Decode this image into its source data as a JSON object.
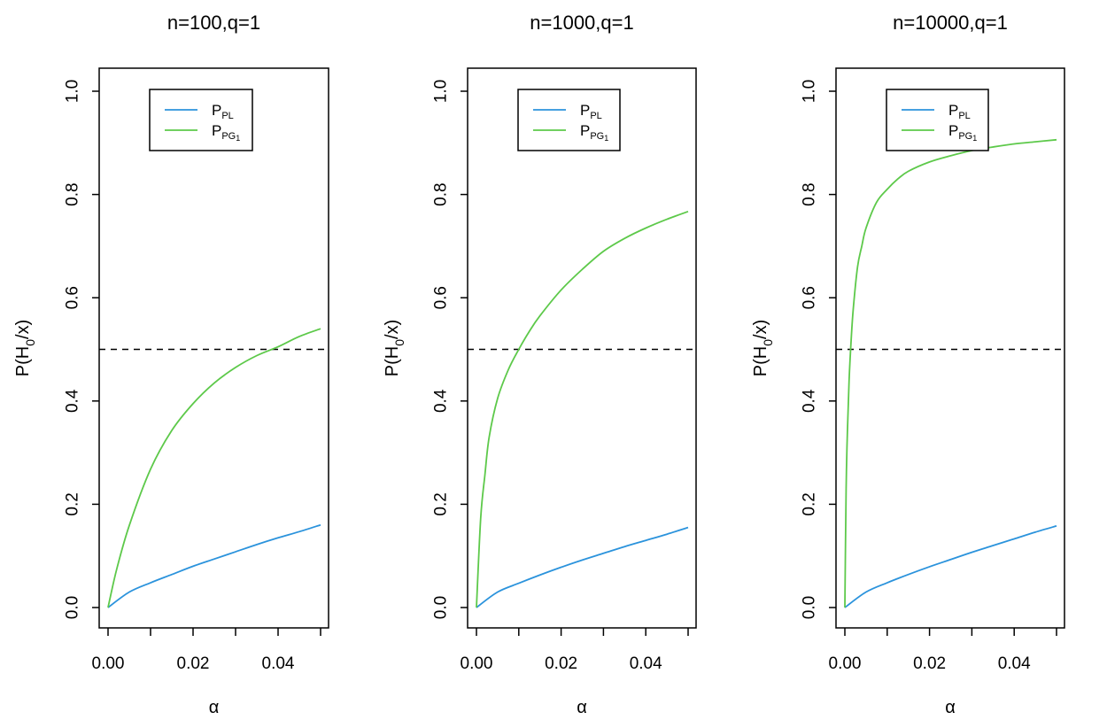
{
  "chart_data": [
    {
      "type": "line",
      "title": "n=100,q=1",
      "xlabel": "α",
      "ylabel": {
        "base": "P(H",
        "sub": "0",
        "tail": "/x)"
      },
      "xlim": [
        0,
        0.05
      ],
      "ylim": [
        0,
        1
      ],
      "xticks": [
        0,
        0.01,
        0.02,
        0.03,
        0.04,
        0.05
      ],
      "xtick_labels": [
        "0.00",
        "",
        "0.02",
        "",
        "0.04",
        ""
      ],
      "yticks": [
        0,
        0.2,
        0.4,
        0.6,
        0.8,
        1.0
      ],
      "ytick_labels": [
        "0.0",
        "0.2",
        "0.4",
        "0.6",
        "0.8",
        "1.0"
      ],
      "reference_line": {
        "y": 0.5,
        "style": "dashed"
      },
      "legend": [
        {
          "base": "P",
          "sub": "PL",
          "subsub": "",
          "color": "#2b93dc"
        },
        {
          "base": "P",
          "sub": "PG",
          "subsub": "1",
          "color": "#5dc94a"
        }
      ],
      "series": [
        {
          "name": "P_PL",
          "color": "#2b93dc",
          "x": [
            0,
            0.005,
            0.01,
            0.015,
            0.02,
            0.025,
            0.03,
            0.035,
            0.04,
            0.045,
            0.05
          ],
          "y": [
            0,
            0.03,
            0.048,
            0.064,
            0.08,
            0.094,
            0.108,
            0.122,
            0.135,
            0.147,
            0.16
          ]
        },
        {
          "name": "P_PG1",
          "color": "#5dc94a",
          "x": [
            0,
            0.002,
            0.005,
            0.01,
            0.015,
            0.02,
            0.025,
            0.03,
            0.035,
            0.04,
            0.045,
            0.05
          ],
          "y": [
            0,
            0.073,
            0.159,
            0.268,
            0.343,
            0.395,
            0.435,
            0.465,
            0.488,
            0.505,
            0.525,
            0.54
          ]
        }
      ]
    },
    {
      "type": "line",
      "title": "n=1000,q=1",
      "xlabel": "α",
      "ylabel": {
        "base": "P(H",
        "sub": "0",
        "tail": "/x)"
      },
      "xlim": [
        0,
        0.05
      ],
      "ylim": [
        0,
        1
      ],
      "xticks": [
        0,
        0.01,
        0.02,
        0.03,
        0.04,
        0.05
      ],
      "xtick_labels": [
        "0.00",
        "",
        "0.02",
        "",
        "0.04",
        ""
      ],
      "yticks": [
        0,
        0.2,
        0.4,
        0.6,
        0.8,
        1.0
      ],
      "ytick_labels": [
        "0.0",
        "0.2",
        "0.4",
        "0.6",
        "0.8",
        "1.0"
      ],
      "reference_line": {
        "y": 0.5,
        "style": "dashed"
      },
      "legend": [
        {
          "base": "P",
          "sub": "PL",
          "subsub": "",
          "color": "#2b93dc"
        },
        {
          "base": "P",
          "sub": "PG",
          "subsub": "1",
          "color": "#5dc94a"
        }
      ],
      "series": [
        {
          "name": "P_PL",
          "color": "#2b93dc",
          "x": [
            0,
            0.005,
            0.01,
            0.015,
            0.02,
            0.025,
            0.03,
            0.035,
            0.04,
            0.045,
            0.05
          ],
          "y": [
            0,
            0.03,
            0.047,
            0.063,
            0.078,
            0.092,
            0.105,
            0.118,
            0.13,
            0.142,
            0.155
          ]
        },
        {
          "name": "P_PG1",
          "color": "#5dc94a",
          "x": [
            0,
            0.001,
            0.002,
            0.003,
            0.005,
            0.0075,
            0.01,
            0.0125,
            0.015,
            0.02,
            0.025,
            0.03,
            0.035,
            0.04,
            0.045,
            0.05
          ],
          "y": [
            0,
            0.173,
            0.257,
            0.33,
            0.405,
            0.46,
            0.5,
            0.535,
            0.565,
            0.615,
            0.655,
            0.69,
            0.715,
            0.735,
            0.752,
            0.767
          ]
        }
      ]
    },
    {
      "type": "line",
      "title": "n=10000,q=1",
      "xlabel": "α",
      "ylabel": {
        "base": "P(H",
        "sub": "0",
        "tail": "/x)"
      },
      "xlim": [
        0,
        0.05
      ],
      "ylim": [
        0,
        1
      ],
      "xticks": [
        0,
        0.01,
        0.02,
        0.03,
        0.04,
        0.05
      ],
      "xtick_labels": [
        "0.00",
        "",
        "0.02",
        "",
        "0.04",
        ""
      ],
      "yticks": [
        0,
        0.2,
        0.4,
        0.6,
        0.8,
        1.0
      ],
      "ytick_labels": [
        "0.0",
        "0.2",
        "0.4",
        "0.6",
        "0.8",
        "1.0"
      ],
      "reference_line": {
        "y": 0.5,
        "style": "dashed"
      },
      "legend": [
        {
          "base": "P",
          "sub": "PL",
          "subsub": "",
          "color": "#2b93dc"
        },
        {
          "base": "P",
          "sub": "PG",
          "subsub": "1",
          "color": "#5dc94a"
        }
      ],
      "series": [
        {
          "name": "P_PL",
          "color": "#2b93dc",
          "x": [
            0,
            0.005,
            0.01,
            0.015,
            0.02,
            0.025,
            0.03,
            0.035,
            0.04,
            0.045,
            0.05
          ],
          "y": [
            0,
            0.03,
            0.048,
            0.064,
            0.079,
            0.093,
            0.107,
            0.12,
            0.133,
            0.146,
            0.158
          ]
        },
        {
          "name": "P_PG1",
          "color": "#5dc94a",
          "x": [
            0,
            0.0003,
            0.0006,
            0.001,
            0.0015,
            0.002,
            0.003,
            0.004,
            0.005,
            0.0075,
            0.01,
            0.0125,
            0.015,
            0.02,
            0.025,
            0.03,
            0.035,
            0.04,
            0.045,
            0.05
          ],
          "y": [
            0,
            0.23,
            0.34,
            0.44,
            0.52,
            0.58,
            0.66,
            0.7,
            0.735,
            0.785,
            0.81,
            0.83,
            0.845,
            0.863,
            0.875,
            0.885,
            0.892,
            0.898,
            0.902,
            0.906
          ]
        }
      ]
    }
  ]
}
